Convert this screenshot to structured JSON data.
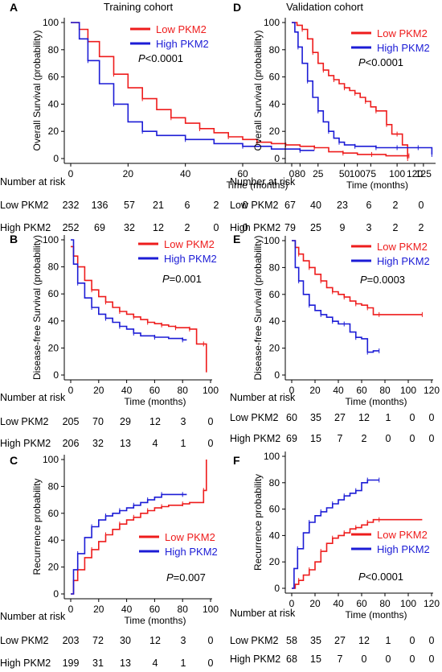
{
  "columns": {
    "left": {
      "header": "Training cohort"
    },
    "right": {
      "header": "Validation cohort"
    }
  },
  "colors": {
    "low": "#ee1c1c",
    "high": "#1c1cd6",
    "axis": "#000000"
  },
  "chart_data": [
    {
      "panel": "A",
      "type": "line",
      "cohort": "Training cohort",
      "ylabel": "Overall Survival (probability)",
      "xlabel": "Time (months)",
      "xlim": [
        0,
        120
      ],
      "ylim": [
        0,
        100
      ],
      "xticks": [
        0,
        20,
        40,
        60,
        80,
        100,
        120
      ],
      "yticks": [
        0,
        20,
        40,
        60,
        80,
        100
      ],
      "pvalue": "P<0.0001",
      "legend": "top-right",
      "series": [
        {
          "name": "Low PKM2",
          "color": "#ee1c1c",
          "x": [
            0,
            3,
            6,
            10,
            15,
            20,
            25,
            30,
            35,
            40,
            45,
            50,
            55,
            60,
            65,
            70,
            75,
            80,
            85,
            90,
            95,
            100,
            105,
            110,
            118
          ],
          "y": [
            100,
            95,
            86,
            75,
            62,
            52,
            44,
            36,
            30,
            26,
            22,
            19,
            16,
            14,
            12,
            11,
            10,
            9,
            8,
            5,
            4,
            3,
            3,
            2,
            2
          ]
        },
        {
          "name": "High PKM2",
          "color": "#1c1cd6",
          "x": [
            0,
            3,
            6,
            10,
            15,
            20,
            25,
            30,
            40,
            50,
            60,
            70,
            80,
            85
          ],
          "y": [
            100,
            88,
            72,
            55,
            40,
            27,
            20,
            17,
            14,
            11,
            9,
            7,
            6,
            6
          ]
        }
      ],
      "risk": {
        "title": "Number at risk",
        "rows": [
          {
            "label": "Low PKM2",
            "values": [
              "232",
              "136",
              "57",
              "21",
              "6",
              "2",
              "0"
            ]
          },
          {
            "label": "High PKM2",
            "values": [
              "252",
              "69",
              "32",
              "12",
              "2",
              "0",
              "0"
            ]
          }
        ]
      }
    },
    {
      "panel": "D",
      "type": "line",
      "cohort": "Validation cohort",
      "ylabel": "Overall Survival (probability)",
      "xlabel": "Time (months)",
      "xlim": [
        0,
        135
      ],
      "ylim": [
        0,
        100
      ],
      "xticks": [
        0,
        25,
        50,
        75,
        100,
        125
      ],
      "yticks": [
        0,
        20,
        40,
        60,
        80,
        100
      ],
      "pvalue": "P<0.0001",
      "legend": "top-right",
      "series": [
        {
          "name": "Low PKM2",
          "color": "#ee1c1c",
          "x": [
            0,
            5,
            10,
            15,
            20,
            25,
            30,
            35,
            40,
            45,
            50,
            55,
            60,
            65,
            70,
            75,
            80,
            85,
            90,
            95,
            100,
            105,
            110
          ],
          "y": [
            100,
            98,
            95,
            88,
            78,
            70,
            65,
            61,
            58,
            55,
            52,
            50,
            48,
            45,
            42,
            38,
            35,
            35,
            25,
            18,
            18,
            10,
            0
          ]
        },
        {
          "name": "High PKM2",
          "color": "#1c1cd6",
          "x": [
            0,
            3,
            6,
            10,
            15,
            20,
            25,
            30,
            35,
            40,
            45,
            50,
            60,
            70,
            80,
            90,
            100,
            110,
            120,
            130,
            133
          ],
          "y": [
            100,
            93,
            82,
            70,
            57,
            45,
            35,
            27,
            20,
            15,
            12,
            10,
            9,
            9,
            8,
            8,
            8,
            8,
            8,
            8,
            3
          ]
        }
      ],
      "risk": {
        "title": "Number at risk",
        "rows": [
          {
            "label": "Low PKM2",
            "values": [
              "67",
              "40",
              "23",
              "6",
              "2",
              "0"
            ]
          },
          {
            "label": "High PKM2",
            "values": [
              "79",
              "25",
              "9",
              "3",
              "2",
              "2"
            ]
          }
        ]
      }
    },
    {
      "panel": "B",
      "type": "line",
      "cohort": "Training cohort",
      "ylabel": "Disease-free Survival (probability)",
      "xlabel": "Time (months)",
      "xlim": [
        0,
        100
      ],
      "ylim": [
        0,
        100
      ],
      "xticks": [
        0,
        20,
        40,
        60,
        80,
        100
      ],
      "yticks": [
        0,
        20,
        40,
        60,
        80,
        100
      ],
      "pvalue": "P=0.001",
      "legend": "top-right",
      "series": [
        {
          "name": "Low PKM2",
          "color": "#ee1c1c",
          "x": [
            0,
            2,
            5,
            10,
            15,
            20,
            25,
            30,
            35,
            40,
            45,
            50,
            55,
            60,
            65,
            70,
            75,
            80,
            85,
            90,
            95,
            97
          ],
          "y": [
            95,
            88,
            80,
            70,
            63,
            58,
            54,
            50,
            47,
            45,
            43,
            41,
            39,
            38,
            37,
            36,
            35,
            35,
            34,
            23,
            23,
            2
          ]
        },
        {
          "name": "High PKM2",
          "color": "#1c1cd6",
          "x": [
            0,
            2,
            5,
            10,
            15,
            20,
            25,
            30,
            35,
            40,
            45,
            50,
            60,
            70,
            80,
            83
          ],
          "y": [
            100,
            82,
            68,
            57,
            50,
            45,
            42,
            39,
            36,
            34,
            31,
            29,
            28,
            27,
            26,
            26
          ]
        }
      ],
      "risk": {
        "title": "Number at risk",
        "rows": [
          {
            "label": "Low PKM2",
            "values": [
              "205",
              "70",
              "29",
              "12",
              "3",
              "0"
            ]
          },
          {
            "label": "High PKM2",
            "values": [
              "206",
              "32",
              "13",
              "4",
              "1",
              "0"
            ]
          }
        ]
      }
    },
    {
      "panel": "E",
      "type": "line",
      "cohort": "Validation cohort",
      "ylabel": "Disease-free Survival (probability)",
      "xlabel": "Time (months)",
      "xlim": [
        0,
        120
      ],
      "ylim": [
        0,
        100
      ],
      "xticks": [
        0,
        20,
        40,
        60,
        80,
        100,
        120
      ],
      "yticks": [
        0,
        20,
        40,
        60,
        80,
        100
      ],
      "pvalue": "P=0.0003",
      "legend": "top-right",
      "series": [
        {
          "name": "Low PKM2",
          "color": "#ee1c1c",
          "x": [
            0,
            3,
            6,
            10,
            15,
            20,
            25,
            30,
            35,
            40,
            45,
            50,
            55,
            60,
            65,
            70,
            75,
            80,
            112
          ],
          "y": [
            100,
            95,
            90,
            85,
            80,
            75,
            70,
            65,
            62,
            60,
            58,
            55,
            53,
            52,
            50,
            45,
            45,
            45,
            45
          ]
        },
        {
          "name": "High PKM2",
          "color": "#1c1cd6",
          "x": [
            0,
            3,
            6,
            10,
            15,
            20,
            25,
            30,
            35,
            40,
            45,
            50,
            55,
            60,
            65,
            70,
            75
          ],
          "y": [
            100,
            80,
            70,
            60,
            52,
            48,
            45,
            43,
            40,
            38,
            38,
            32,
            28,
            27,
            17,
            18,
            18
          ]
        }
      ],
      "risk": {
        "title": "Number at risk",
        "rows": [
          {
            "label": "Low PKM2",
            "values": [
              "60",
              "35",
              "27",
              "12",
              "1",
              "0",
              "0"
            ]
          },
          {
            "label": "High PKM2",
            "values": [
              "69",
              "15",
              "7",
              "2",
              "0",
              "0",
              "0"
            ]
          }
        ]
      }
    },
    {
      "panel": "C",
      "type": "line",
      "cohort": "Training cohort",
      "ylabel": "Recurrence probability",
      "xlabel": "Time (months)",
      "xlim": [
        0,
        100
      ],
      "ylim": [
        0,
        100
      ],
      "xticks": [
        0,
        20,
        40,
        60,
        80,
        100
      ],
      "yticks": [
        0,
        20,
        40,
        60,
        80,
        100
      ],
      "pvalue": "P=0.007",
      "legend": "bottom-right",
      "series": [
        {
          "name": "Low PKM2",
          "color": "#ee1c1c",
          "x": [
            0,
            2,
            5,
            10,
            15,
            20,
            25,
            30,
            35,
            40,
            45,
            50,
            55,
            60,
            65,
            70,
            80,
            85,
            95,
            97
          ],
          "y": [
            0,
            10,
            18,
            27,
            33,
            39,
            44,
            48,
            52,
            55,
            57,
            60,
            62,
            64,
            65,
            66,
            67,
            68,
            77,
            100
          ]
        },
        {
          "name": "High PKM2",
          "color": "#1c1cd6",
          "x": [
            0,
            2,
            5,
            10,
            15,
            20,
            25,
            30,
            35,
            40,
            45,
            50,
            55,
            60,
            65,
            70,
            80,
            83
          ],
          "y": [
            0,
            18,
            30,
            42,
            50,
            55,
            58,
            60,
            62,
            64,
            66,
            68,
            70,
            72,
            74,
            74,
            74,
            74
          ]
        }
      ],
      "risk": {
        "title": "Number at risk",
        "rows": [
          {
            "label": "Low PKM2",
            "values": [
              "203",
              "72",
              "30",
              "12",
              "3",
              "0"
            ]
          },
          {
            "label": "High PKM2",
            "values": [
              "199",
              "31",
              "13",
              "4",
              "1",
              "0"
            ]
          }
        ]
      }
    },
    {
      "panel": "F",
      "type": "line",
      "cohort": "Validation cohort",
      "ylabel": "Recurrence probability",
      "xlabel": "Time (months)",
      "xlim": [
        0,
        120
      ],
      "ylim": [
        0,
        100
      ],
      "xticks": [
        0,
        20,
        40,
        60,
        80,
        100,
        120
      ],
      "yticks": [
        0,
        20,
        40,
        60,
        80,
        100
      ],
      "pvalue": "P<0.0001",
      "legend": "bottom-right",
      "series": [
        {
          "name": "Low PKM2",
          "color": "#ee1c1c",
          "x": [
            0,
            3,
            6,
            10,
            15,
            20,
            25,
            30,
            35,
            40,
            45,
            50,
            55,
            60,
            65,
            70,
            75,
            112
          ],
          "y": [
            0,
            3,
            6,
            10,
            14,
            20,
            28,
            34,
            38,
            40,
            42,
            45,
            46,
            48,
            50,
            52,
            52,
            52
          ]
        },
        {
          "name": "High PKM2",
          "color": "#1c1cd6",
          "x": [
            0,
            2,
            5,
            10,
            15,
            20,
            25,
            30,
            35,
            40,
            45,
            50,
            55,
            60,
            65,
            70,
            75
          ],
          "y": [
            0,
            15,
            30,
            42,
            50,
            55,
            58,
            61,
            64,
            67,
            70,
            72,
            74,
            80,
            82,
            82,
            82
          ]
        }
      ],
      "risk": {
        "title": "Number at risk",
        "rows": [
          {
            "label": "Low PKM2",
            "values": [
              "58",
              "35",
              "27",
              "12",
              "1",
              "0",
              "0"
            ]
          },
          {
            "label": "High PKM2",
            "values": [
              "68",
              "15",
              "7",
              "0",
              "0",
              "0",
              "0"
            ]
          }
        ]
      }
    }
  ]
}
